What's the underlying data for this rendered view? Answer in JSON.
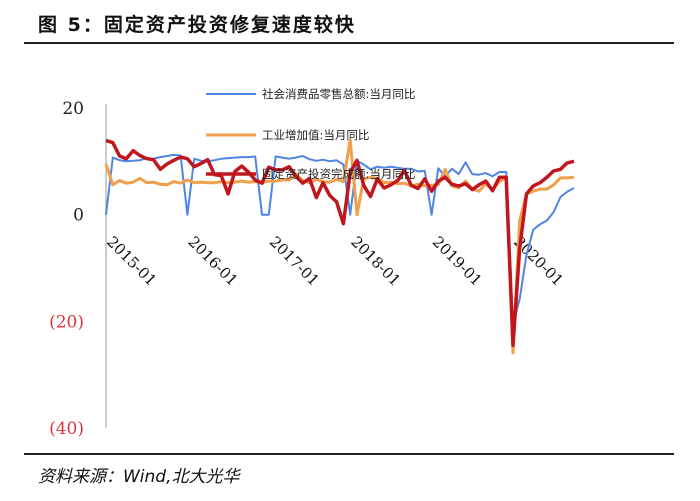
{
  "figure": {
    "title": "图 5：固定资产投资修复速度较快",
    "source": "资料来源：Wind,北大光华"
  },
  "chart_data": {
    "type": "line",
    "title": "",
    "xlabel": "",
    "ylabel": "",
    "ylim": [
      -40,
      20
    ],
    "y_ticks": [
      {
        "value": 20,
        "label": "20",
        "color": "#222222"
      },
      {
        "value": 0,
        "label": "0",
        "color": "#222222"
      },
      {
        "value": -20,
        "label": "(20)",
        "color": "#d9363e"
      },
      {
        "value": -40,
        "label": "(40)",
        "color": "#d9363e"
      }
    ],
    "x_tick_labels": [
      "2015-01",
      "2016-01",
      "2017-01",
      "2018-01",
      "2019-01",
      "2020-01"
    ],
    "x_tick_index": [
      0,
      12,
      24,
      36,
      48,
      60
    ],
    "grid": false,
    "legend_position": "top-center",
    "n_months": 70,
    "series": [
      {
        "name": "社会消费品零售总额:当月同比",
        "color": "#4f86e0",
        "width": 2,
        "values": [
          0,
          10.7,
          10.2,
          10.0,
          10.1,
          10.2,
          10.6,
          10.5,
          10.8,
          11.0,
          11.2,
          11.1,
          0,
          10.5,
          10.1,
          10.0,
          10.2,
          10.5,
          10.6,
          10.7,
          10.8,
          10.8,
          10.9,
          0,
          0,
          10.9,
          10.7,
          10.5,
          10.7,
          11.0,
          10.4,
          10.1,
          10.3,
          10.0,
          10.2,
          9.4,
          0,
          10.1,
          9.4,
          8.5,
          9.0,
          8.8,
          9.0,
          8.8,
          8.6,
          8.6,
          8.1,
          8.2,
          0,
          8.7,
          7.2,
          8.6,
          7.6,
          9.8,
          7.6,
          7.5,
          7.8,
          7.2,
          8.0,
          8.0,
          -20.5,
          -15.8,
          -7.5,
          -2.8,
          -1.8,
          -1.1,
          0.5,
          3.3,
          4.3,
          5.0
        ]
      },
      {
        "name": "工业增加值:当月同比",
        "color": "#f0a04b",
        "width": 3,
        "values": [
          9.5,
          5.6,
          6.4,
          5.9,
          6.1,
          6.8,
          6.0,
          6.1,
          5.7,
          5.6,
          6.2,
          5.9,
          6.5,
          6.0,
          6.1,
          6.0,
          6.0,
          6.2,
          6.0,
          6.1,
          6.3,
          6.1,
          6.2,
          6.0,
          6.3,
          6.3,
          6.5,
          6.5,
          7.6,
          6.4,
          6.0,
          6.6,
          6.2,
          6.1,
          6.6,
          6.2,
          14.0,
          0,
          6.7,
          7.0,
          6.8,
          6.0,
          6.1,
          5.8,
          5.9,
          5.4,
          5.7,
          5.4,
          5.5,
          5.6,
          8.5,
          5.4,
          5.0,
          6.3,
          4.8,
          4.4,
          5.8,
          4.7,
          6.2,
          6.9,
          -25.9,
          -1.1,
          3.9,
          4.4,
          4.8,
          4.8,
          5.6,
          6.9,
          6.9,
          7.0
        ]
      },
      {
        "name": "固定资产投资完成额:当月同比",
        "color": "#c0161e",
        "width": 3.5,
        "values": [
          13.9,
          13.5,
          11.0,
          10.5,
          12.0,
          11.1,
          10.5,
          10.3,
          8.5,
          9.5,
          10.2,
          10.8,
          10.5,
          9.0,
          9.6,
          10.3,
          7.5,
          7.3,
          3.9,
          8.1,
          9.1,
          8.0,
          6.5,
          5.9,
          8.9,
          8.4,
          8.4,
          9.0,
          7.2,
          5.9,
          6.8,
          3.2,
          6.0,
          3.6,
          2.4,
          -1.7,
          7.9,
          10.2,
          5.5,
          3.4,
          6.7,
          5.0,
          5.6,
          6.4,
          8.3,
          5.5,
          4.9,
          6.7,
          4.4,
          6.3,
          7.0,
          5.7,
          5.4,
          5.8,
          4.7,
          5.6,
          6.3,
          4.5,
          7.0,
          7.0,
          -24.5,
          -6.3,
          3.9,
          5.4,
          6.0,
          7.0,
          8.2,
          8.5,
          9.7,
          10.0
        ]
      }
    ]
  }
}
